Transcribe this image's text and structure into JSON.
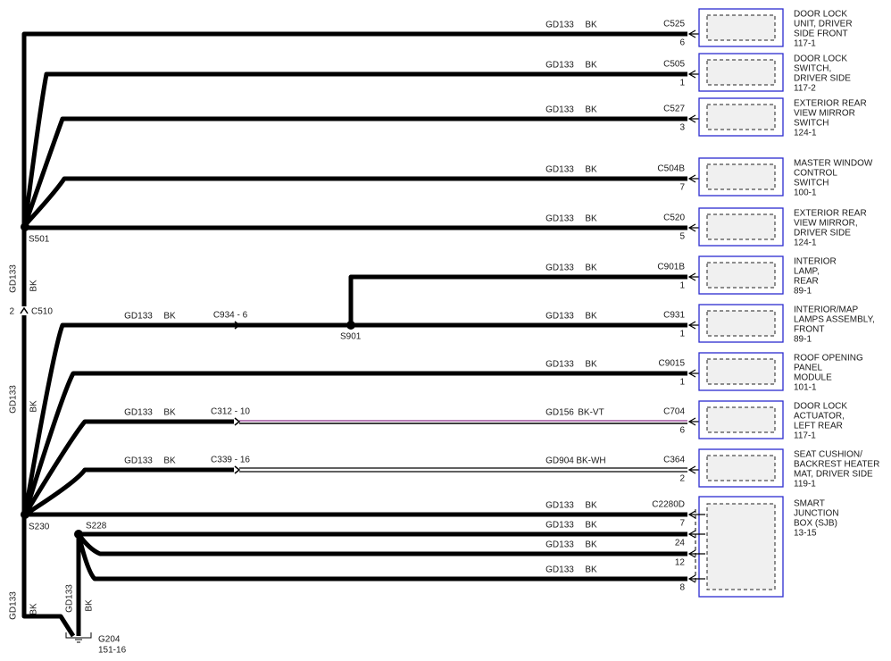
{
  "splices": [
    "S501",
    "S901",
    "S230",
    "S228"
  ],
  "c510": {
    "name": "C510",
    "pin": "2"
  },
  "trunk_labels": [
    {
      "circuit": "GD133",
      "color": "BK"
    },
    {
      "circuit": "GD133",
      "color": "BK"
    },
    {
      "circuit": "GD133",
      "color": "BK"
    },
    {
      "circuit": "GD133",
      "color": "BK"
    }
  ],
  "ground": {
    "name": "G204",
    "ref": "151-16"
  },
  "components": [
    {
      "lines": [
        "DOOR LOCK",
        "UNIT, DRIVER",
        "SIDE FRONT",
        "117-1"
      ],
      "connector": "C525",
      "pins": [
        "6"
      ],
      "wires": [
        {
          "circuit": "GD133",
          "color": "BK"
        }
      ]
    },
    {
      "lines": [
        "DOOR LOCK",
        "SWITCH,",
        "DRIVER SIDE",
        "117-2"
      ],
      "connector": "C505",
      "pins": [
        "1"
      ],
      "wires": [
        {
          "circuit": "GD133",
          "color": "BK"
        }
      ]
    },
    {
      "lines": [
        "EXTERIOR REAR",
        "VIEW MIRROR",
        "SWITCH",
        "124-1"
      ],
      "connector": "C527",
      "pins": [
        "3"
      ],
      "wires": [
        {
          "circuit": "GD133",
          "color": "BK"
        }
      ]
    },
    {
      "lines": [
        "MASTER WINDOW",
        "CONTROL",
        "SWITCH",
        "100-1"
      ],
      "connector": "C504B",
      "pins": [
        "7"
      ],
      "wires": [
        {
          "circuit": "GD133",
          "color": "BK"
        }
      ]
    },
    {
      "lines": [
        "EXTERIOR REAR",
        "VIEW MIRROR,",
        "DRIVER SIDE",
        "124-1"
      ],
      "connector": "C520",
      "pins": [
        "5"
      ],
      "wires": [
        {
          "circuit": "GD133",
          "color": "BK"
        }
      ]
    },
    {
      "lines": [
        "INTERIOR",
        "LAMP,",
        "REAR",
        "89-1"
      ],
      "connector": "C901B",
      "pins": [
        "1"
      ],
      "wires": [
        {
          "circuit": "GD133",
          "color": "BK"
        }
      ]
    },
    {
      "lines": [
        "INTERIOR/MAP",
        "LAMPS ASSEMBLY,",
        "FRONT",
        "89-1"
      ],
      "connector": "C931",
      "pins": [
        "1"
      ],
      "wires": [
        {
          "circuit": "GD133",
          "color": "BK"
        }
      ],
      "inline": {
        "connector": "C934 - 6",
        "circuit": "GD133",
        "color": "BK"
      }
    },
    {
      "lines": [
        "ROOF OPENING",
        "PANEL",
        "MODULE",
        "101-1"
      ],
      "connector": "C9015",
      "pins": [
        "1"
      ],
      "wires": [
        {
          "circuit": "GD133",
          "color": "BK"
        }
      ]
    },
    {
      "lines": [
        "DOOR LOCK",
        "ACTUATOR,",
        "LEFT REAR",
        "117-1"
      ],
      "connector": "C704",
      "pins": [
        "6"
      ],
      "wires": [
        {
          "circuit": "GD156",
          "color": "BK-VT"
        }
      ],
      "inline": {
        "connector": "C312 - 10",
        "circuit": "GD133",
        "color": "BK"
      }
    },
    {
      "lines": [
        "SEAT CUSHION/",
        "BACKREST HEATER",
        "MAT, DRIVER SIDE",
        "119-1"
      ],
      "connector": "C364",
      "pins": [
        "2"
      ],
      "wires": [
        {
          "circuit": "GD904",
          "color": "BK-WH"
        }
      ],
      "inline": {
        "connector": "C339 - 16",
        "circuit": "GD133",
        "color": "BK"
      }
    },
    {
      "lines": [
        "SMART",
        "JUNCTION",
        "BOX (SJB)",
        "13-15"
      ],
      "connector": "C2280D",
      "pins": [
        "7",
        "24",
        "12",
        "8"
      ],
      "wires": [
        {
          "circuit": "GD133",
          "color": "BK"
        },
        {
          "circuit": "GD133",
          "color": "BK"
        },
        {
          "circuit": "GD133",
          "color": "BK"
        },
        {
          "circuit": "GD133",
          "color": "BK"
        }
      ]
    }
  ]
}
